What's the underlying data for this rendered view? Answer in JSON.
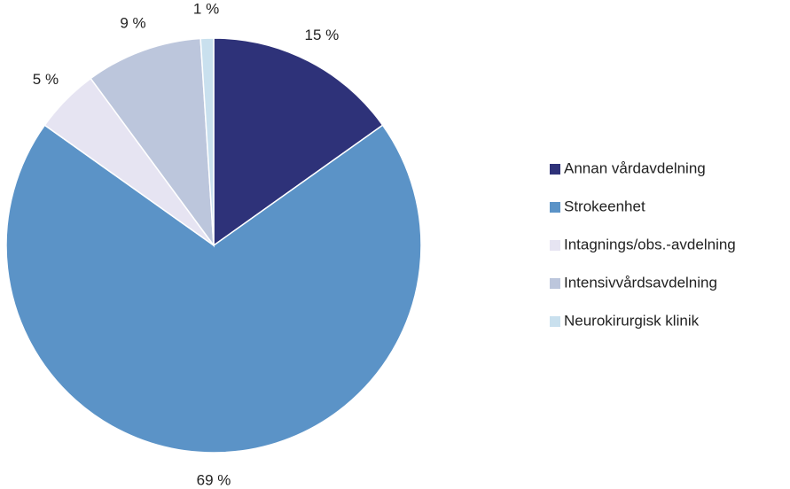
{
  "chart_data": {
    "type": "pie",
    "categories": [
      "Annan vårdavdelning",
      "Strokeenhet",
      "Intagnings/obs.-avdelning",
      "Intensivvårdsavdelning",
      "Neurokirurgisk klinik"
    ],
    "values": [
      15,
      69,
      5,
      9,
      1
    ],
    "value_labels": [
      "15 %",
      "69 %",
      "5 %",
      "9 %",
      "1 %"
    ],
    "colors": [
      "#2e3279",
      "#5b93c7",
      "#e6e4f2",
      "#bcc6dc",
      "#c9e0ee"
    ],
    "legend": "right"
  }
}
